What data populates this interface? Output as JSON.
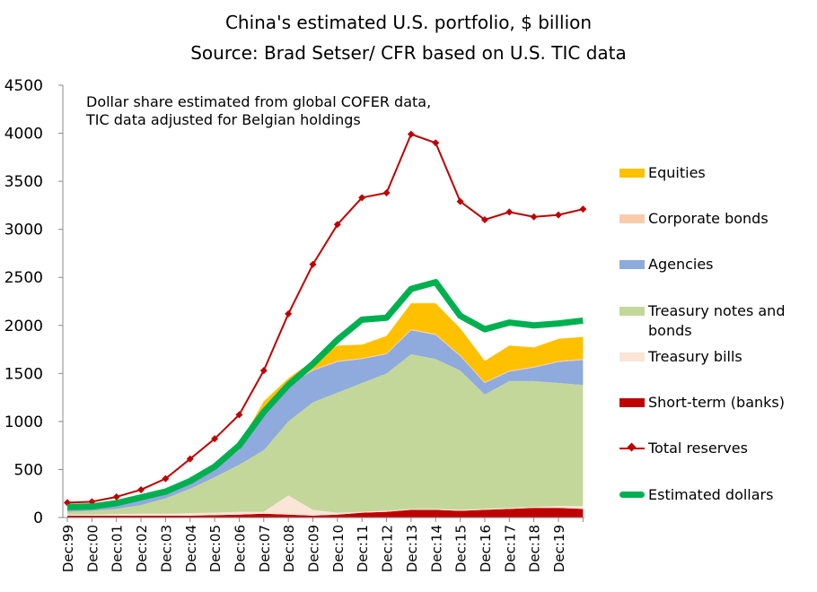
{
  "chart_data": {
    "type": "stacked-area-line",
    "title": "China's estimated U.S. portfolio, $ billion",
    "subtitle": "Source: Brad Setser/ CFR based on U.S. TIC data",
    "annotation": "Dollar share estimated from global COFER data, TIC data adjusted for Belgian holdings",
    "categories": [
      "Dec:99",
      "Dec:00",
      "Dec:01",
      "Dec:02",
      "Dec:03",
      "Dec:04",
      "Dec:05",
      "Dec:06",
      "Dec:07",
      "Dec:08",
      "Dec:09",
      "Dec:10",
      "Dec:11",
      "Dec:12",
      "Dec:13",
      "Dec:14",
      "Dec:15",
      "Dec:16",
      "Dec:17",
      "Dec:18",
      "Dec:19",
      null
    ],
    "ylim": [
      0,
      4500
    ],
    "yticks": [
      0,
      500,
      1000,
      1500,
      2000,
      2500,
      3000,
      3500,
      4000,
      4500
    ],
    "grid": false,
    "stack_order": [
      5,
      4,
      3,
      2,
      1,
      0
    ],
    "series": [
      {
        "name": "Equities",
        "kind": "area",
        "color": "#ffc000",
        "values": [
          0,
          0,
          0,
          0,
          0,
          5,
          10,
          20,
          60,
          50,
          90,
          160,
          140,
          180,
          270,
          320,
          280,
          220,
          260,
          200,
          230,
          230
        ]
      },
      {
        "name": "Corporate bonds",
        "kind": "area",
        "color": "#f8cbad",
        "values": [
          0,
          0,
          5,
          10,
          15,
          20,
          30,
          40,
          50,
          20,
          10,
          10,
          10,
          10,
          10,
          10,
          10,
          10,
          10,
          10,
          10,
          10
        ]
      },
      {
        "name": "Agencies",
        "kind": "area",
        "color": "#8faadc",
        "values": [
          30,
          30,
          40,
          60,
          60,
          60,
          80,
          150,
          400,
          380,
          330,
          320,
          250,
          200,
          250,
          250,
          150,
          120,
          100,
          140,
          220,
          260
        ]
      },
      {
        "name": "Treasury notes and bonds",
        "kind": "area",
        "color": "#c4d79b",
        "values": [
          30,
          40,
          55,
          90,
          160,
          255,
          370,
          490,
          640,
          770,
          1120,
          1250,
          1340,
          1430,
          1610,
          1560,
          1450,
          1190,
          1320,
          1310,
          1280,
          1260
        ]
      },
      {
        "name": "Treasury bills",
        "kind": "area",
        "color": "#fbe5d6",
        "values": [
          10,
          10,
          15,
          20,
          20,
          25,
          25,
          30,
          20,
          200,
          60,
          20,
          10,
          10,
          10,
          10,
          10,
          10,
          10,
          10,
          20,
          30
        ]
      },
      {
        "name": "Short-term (banks)",
        "kind": "area",
        "color": "#c00000",
        "values": [
          20,
          20,
          20,
          20,
          20,
          20,
          25,
          30,
          40,
          30,
          20,
          30,
          50,
          60,
          80,
          80,
          70,
          80,
          90,
          100,
          100,
          90
        ]
      },
      {
        "name": "Total reserves",
        "kind": "line",
        "marker": "diamond",
        "color": "#c00000",
        "values": [
          155,
          165,
          215,
          290,
          405,
          610,
          820,
          1070,
          1530,
          2120,
          2635,
          3050,
          3330,
          3380,
          3990,
          3900,
          3290,
          3100,
          3180,
          3130,
          3150,
          3210
        ]
      },
      {
        "name": "Estimated dollars",
        "kind": "line",
        "marker": "none",
        "color": "#00b050",
        "values": [
          110,
          115,
          150,
          210,
          270,
          380,
          530,
          750,
          1100,
          1380,
          1600,
          1850,
          2060,
          2080,
          2380,
          2450,
          2100,
          1960,
          2030,
          2000,
          2020,
          2050
        ]
      }
    ]
  }
}
